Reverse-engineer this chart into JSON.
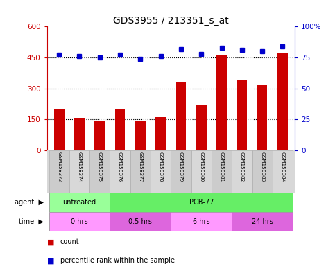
{
  "title": "GDS3955 / 213351_s_at",
  "samples": [
    "GSM158373",
    "GSM158374",
    "GSM158375",
    "GSM158376",
    "GSM158377",
    "GSM158378",
    "GSM158379",
    "GSM158380",
    "GSM158381",
    "GSM158382",
    "GSM158383",
    "GSM158384"
  ],
  "counts": [
    200,
    155,
    145,
    200,
    140,
    160,
    330,
    220,
    460,
    340,
    320,
    470
  ],
  "percentile": [
    77,
    76,
    75,
    77,
    74,
    76,
    82,
    78,
    83,
    81,
    80,
    84
  ],
  "ylim_left": [
    0,
    600
  ],
  "ylim_right": [
    0,
    100
  ],
  "yticks_left": [
    0,
    150,
    300,
    450,
    600
  ],
  "yticks_right": [
    0,
    25,
    50,
    75,
    100
  ],
  "ytick_labels_left": [
    "0",
    "150",
    "300",
    "450",
    "600"
  ],
  "ytick_labels_right": [
    "0",
    "25",
    "50",
    "75",
    "100%"
  ],
  "bar_color": "#cc0000",
  "dot_color": "#0000cc",
  "bg_color": "#ffffff",
  "agent_row": [
    {
      "label": "untreated",
      "start": 0,
      "end": 3,
      "color": "#99ff99"
    },
    {
      "label": "PCB-77",
      "start": 3,
      "end": 12,
      "color": "#66ee66"
    }
  ],
  "time_row": [
    {
      "label": "0 hrs",
      "start": 0,
      "end": 3,
      "color": "#ff99ff"
    },
    {
      "label": "0.5 hrs",
      "start": 3,
      "end": 6,
      "color": "#dd66dd"
    },
    {
      "label": "6 hrs",
      "start": 6,
      "end": 9,
      "color": "#ff99ff"
    },
    {
      "label": "24 hrs",
      "start": 9,
      "end": 12,
      "color": "#dd66dd"
    }
  ],
  "left_axis_color": "#cc0000",
  "right_axis_color": "#0000cc",
  "title_fontsize": 10,
  "bar_width": 0.5
}
